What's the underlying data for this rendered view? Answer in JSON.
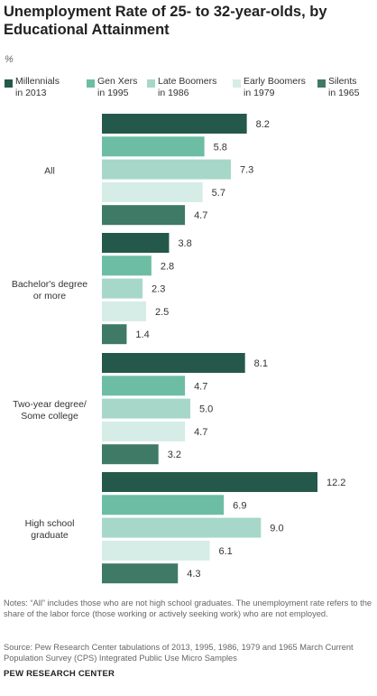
{
  "title": "Unemployment Rate of 25- to 32-year-olds, by Educational Attainment",
  "unit_label": "%",
  "colors": {
    "millennials": "#24584a",
    "gen_x": "#6cbda3",
    "late_boomers": "#a6d7c8",
    "early_boomers": "#d5ede6",
    "silents": "#3e7a66"
  },
  "chart_data": {
    "type": "bar",
    "orientation": "horizontal",
    "categories": [
      "All",
      "Bachelor's degree\nor more",
      "Two-year degree/\nSome college",
      "High school\ngraduate"
    ],
    "series": [
      {
        "name": "Millennials\nin 2013",
        "values": [
          8.2,
          3.8,
          8.1,
          12.2
        ]
      },
      {
        "name": "Gen Xers\nin 1995",
        "values": [
          5.8,
          2.8,
          4.7,
          6.9
        ]
      },
      {
        "name": "Late Boomers\nin 1986",
        "values": [
          7.3,
          2.3,
          5.0,
          9.0
        ]
      },
      {
        "name": "Early Boomers\nin 1979",
        "values": [
          5.7,
          2.5,
          4.7,
          6.1
        ]
      },
      {
        "name": "Silents\nin 1965",
        "values": [
          4.7,
          1.4,
          3.2,
          4.3
        ]
      }
    ],
    "value_labels": [
      [
        "8.2",
        "3.8",
        "8.1",
        "12.2"
      ],
      [
        "5.8",
        "2.8",
        "4.7",
        "6.9"
      ],
      [
        "7.3",
        "2.3",
        "5.0",
        "9.0"
      ],
      [
        "5.7",
        "2.5",
        "4.7",
        "6.1"
      ],
      [
        "4.7",
        "1.4",
        "3.2",
        "4.3"
      ]
    ],
    "xlim": [
      0,
      12.2
    ],
    "legend_position": "top",
    "grid": false,
    "title": "Unemployment Rate of 25- to 32-year-olds, by Educational Attainment",
    "xlabel": "",
    "ylabel": ""
  },
  "notes": "Notes: “All” includes those who are not high school graduates. The unemployment rate refers to the share of the labor force (those working or actively seeking work) who are not employed.",
  "source": "Source: Pew Research Center tabulations of 2013, 1995, 1986, 1979 and 1965 March Current Population Survey (CPS) Integrated Public Use Micro Samples",
  "brand": "PEW RESEARCH CENTER"
}
